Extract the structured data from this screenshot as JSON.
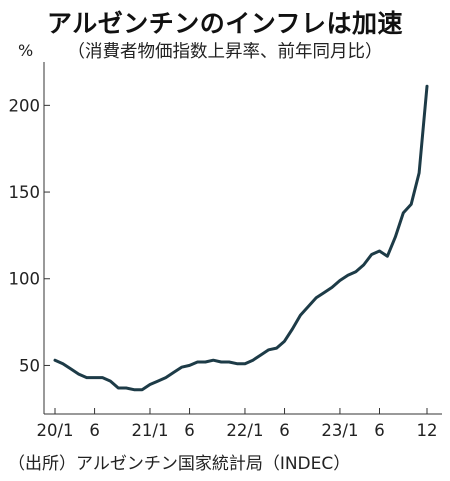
{
  "chart_data": {
    "type": "line",
    "title": "アルゼンチンのインフレは加速",
    "subtitle": "（消費者物価指数上昇率、前年同月比）",
    "ylabel": "%",
    "source": "（出所）アルゼンチン国家統計局（INDEC）",
    "ylim": [
      22,
      225
    ],
    "yticks": [
      50,
      100,
      150,
      200
    ],
    "x_tick_labels": [
      {
        "month_index": 0,
        "label": "20/1"
      },
      {
        "month_index": 5,
        "label": "6"
      },
      {
        "month_index": 12,
        "label": "21/1"
      },
      {
        "month_index": 17,
        "label": "6"
      },
      {
        "month_index": 24,
        "label": "22/1"
      },
      {
        "month_index": 29,
        "label": "6"
      },
      {
        "month_index": 36,
        "label": "23/1"
      },
      {
        "month_index": 41,
        "label": "6"
      },
      {
        "month_index": 47,
        "label": "12"
      }
    ],
    "series": [
      {
        "color": "#1d3b47",
        "x": [
          "2020-01",
          "2020-02",
          "2020-03",
          "2020-04",
          "2020-05",
          "2020-06",
          "2020-07",
          "2020-08",
          "2020-09",
          "2020-10",
          "2020-11",
          "2020-12",
          "2021-01",
          "2021-02",
          "2021-03",
          "2021-04",
          "2021-05",
          "2021-06",
          "2021-07",
          "2021-08",
          "2021-09",
          "2021-10",
          "2021-11",
          "2021-12",
          "2022-01",
          "2022-02",
          "2022-03",
          "2022-04",
          "2022-05",
          "2022-06",
          "2022-07",
          "2022-08",
          "2022-09",
          "2022-10",
          "2022-11",
          "2022-12",
          "2023-01",
          "2023-02",
          "2023-03",
          "2023-04",
          "2023-05",
          "2023-06",
          "2023-07",
          "2023-08",
          "2023-09",
          "2023-10",
          "2023-11",
          "2023-12"
        ],
        "values": [
          53,
          51,
          48,
          45,
          43,
          43,
          43,
          41,
          37,
          37,
          36,
          36,
          39,
          41,
          43,
          46,
          49,
          50,
          52,
          52,
          53,
          52,
          52,
          51,
          51,
          53,
          56,
          59,
          60,
          64,
          71,
          79,
          84,
          89,
          92,
          95,
          99,
          102,
          104,
          108,
          114,
          116,
          113,
          124,
          138,
          143,
          161,
          211
        ]
      }
    ]
  }
}
